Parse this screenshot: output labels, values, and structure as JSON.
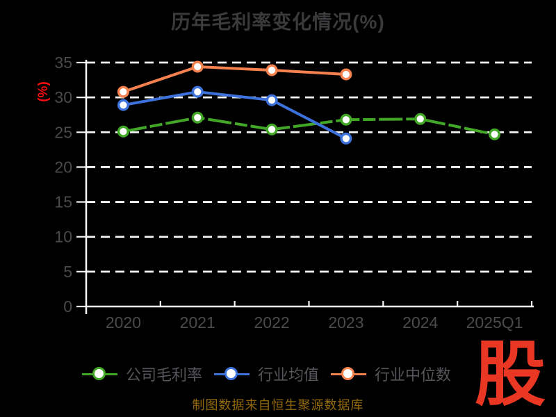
{
  "page": {
    "caption": "制图数据来自恒生聚源数据库",
    "watermark": "股"
  },
  "chart_data": {
    "type": "line",
    "title": "历年毛利率变化情况(%)",
    "xlabel": "",
    "ylabel": "(%)",
    "categories": [
      "2020",
      "2021",
      "2022",
      "2023",
      "2024",
      "2025Q1"
    ],
    "ylim": [
      0,
      35
    ],
    "yticks": [
      0,
      5,
      10,
      15,
      20,
      25,
      30,
      35
    ],
    "grid": {
      "horizontal": true,
      "style": "dashed",
      "vertical": false
    },
    "legend_position": "bottom",
    "series": [
      {
        "name": "公司毛利率",
        "color": "#42a727",
        "line_style": "long-dash",
        "marker": "circle-white-fill",
        "values": [
          25.1,
          27.1,
          25.4,
          26.8,
          26.9,
          24.7
        ]
      },
      {
        "name": "行业均值",
        "color": "#3d71db",
        "line_style": "solid",
        "marker": "circle-white-fill",
        "values": [
          28.9,
          30.8,
          29.6,
          24.1,
          null,
          null
        ]
      },
      {
        "name": "行业中位数",
        "color": "#f5824e",
        "line_style": "solid",
        "marker": "circle-white-fill",
        "values": [
          30.8,
          34.4,
          33.9,
          33.3,
          null,
          null
        ]
      }
    ],
    "colors": {
      "background": "#000000",
      "axis": "#f7f7f7",
      "grid": "#f7f7f7",
      "tick_label": "#4b4b4d",
      "title": "#3a3a3c",
      "legend_text": "#56565a",
      "ylabel": "#fa0d0d",
      "caption": "#93690c",
      "logo": "#e93723"
    }
  }
}
